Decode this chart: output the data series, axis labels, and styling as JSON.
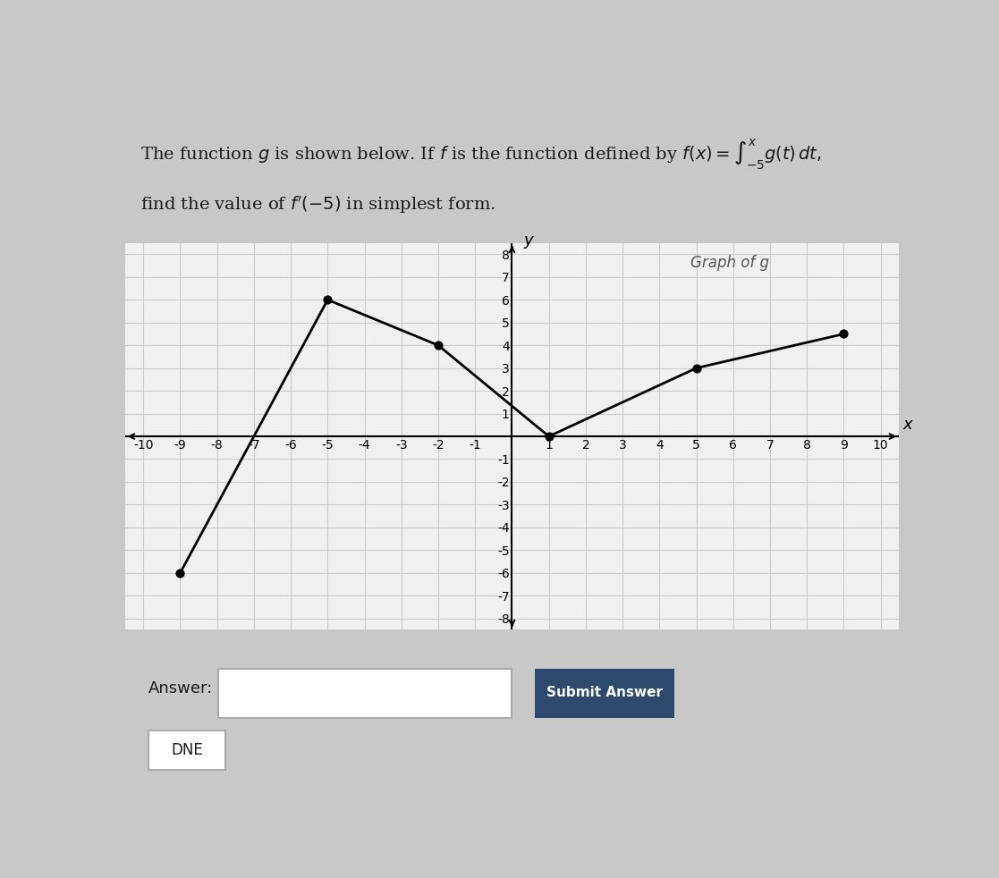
{
  "graph_points": [
    [
      -9,
      -6
    ],
    [
      -5,
      6
    ],
    [
      -2,
      4
    ],
    [
      1,
      0
    ],
    [
      5,
      3
    ],
    [
      9,
      4.5
    ]
  ],
  "dot_points": [
    [
      -9,
      -6
    ],
    [
      -5,
      6
    ],
    [
      -2,
      4
    ],
    [
      1,
      0
    ],
    [
      5,
      3
    ],
    [
      9,
      4.5
    ]
  ],
  "xlim": [
    -10.5,
    10.5
  ],
  "ylim": [
    -8.5,
    8.5
  ],
  "xticks": [
    -10,
    -9,
    -8,
    -7,
    -6,
    -5,
    -4,
    -3,
    -2,
    -1,
    0,
    1,
    2,
    3,
    4,
    5,
    6,
    7,
    8,
    9,
    10
  ],
  "yticks": [
    -8,
    -7,
    -6,
    -5,
    -4,
    -3,
    -2,
    -1,
    0,
    1,
    2,
    3,
    4,
    5,
    6,
    7,
    8
  ],
  "xtick_labels": [
    "-10",
    "-9",
    "-8",
    "-7",
    "-6",
    "-5",
    "-4",
    "-3",
    "-2",
    "-1",
    "",
    "1",
    "2",
    "3",
    "4",
    "5",
    "6",
    "7",
    "8",
    "9",
    "10"
  ],
  "ytick_labels": [
    "-8",
    "-7",
    "-6",
    "-5",
    "-4",
    "-3",
    "-2",
    "-1",
    "",
    "1",
    "2",
    "3",
    "4",
    "5",
    "6",
    "7",
    "8"
  ],
  "graph_label": "Graph of g",
  "line_color": "black",
  "line_width": 2.0,
  "dot_color": "black",
  "dot_size": 40,
  "grid_color": "#cccccc",
  "bg_color": "#f0f0f0",
  "title_text": "The function $g$ is shown below. If $f$ is the function defined by $f(x) = \\int_{-5}^{x} g(t)\\,dt,$",
  "subtitle_text": "find the value of $f'(-5)$ in simplest form.",
  "answer_label": "Answer:",
  "submit_label": "Submit Answer",
  "dne_label": "DNE",
  "text_color": "#1a1a1a",
  "submit_bg": "#2d4a6e",
  "submit_text_color": "white",
  "answer_box_color": "#f5f5f5",
  "panel_bg": "#e8e8e8"
}
